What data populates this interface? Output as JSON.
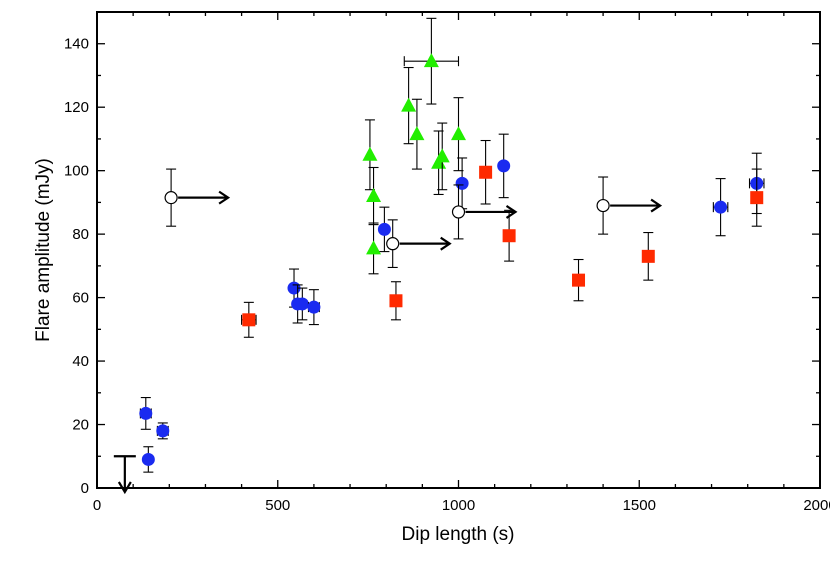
{
  "chart_data": {
    "type": "scatter",
    "title": "",
    "xlabel": "Dip length (s)",
    "ylabel": "Flare amplitude (mJy)",
    "xlim": [
      0,
      2000
    ],
    "ylim": [
      0,
      150
    ],
    "xticks": [
      0,
      500,
      1000,
      1500,
      2000
    ],
    "yticks": [
      0,
      20,
      40,
      60,
      80,
      100,
      120,
      140
    ],
    "xtick_labels": [
      "0",
      "500",
      "1000",
      "1500",
      "2000"
    ],
    "ytick_labels": [
      "0",
      "20",
      "40",
      "60",
      "80",
      "100",
      "120",
      "140"
    ],
    "grid": false,
    "legend": "none",
    "series": [
      {
        "marker": "circle",
        "color": "#1a2bf0",
        "points": [
          {
            "x": 135,
            "y": 23.5,
            "xerr": 15,
            "yerr": 5
          },
          {
            "x": 142,
            "y": 9,
            "yerr": 4
          },
          {
            "x": 182,
            "y": 18,
            "xerr": 15,
            "yerr": 2.5
          },
          {
            "x": 545,
            "y": 63,
            "yerr": 6
          },
          {
            "x": 555,
            "y": 58,
            "yerr": 6
          },
          {
            "x": 568,
            "y": 58,
            "yerr": 5
          },
          {
            "x": 600,
            "y": 57,
            "xerr": 15,
            "yerr": 5.5
          },
          {
            "x": 795,
            "y": 81.5,
            "yerr": 7
          },
          {
            "x": 1010,
            "y": 96,
            "yerr": 8
          },
          {
            "x": 1125,
            "y": 101.5,
            "yerr": 10
          },
          {
            "x": 1725,
            "y": 88.5,
            "xerr": 20,
            "yerr": 9
          },
          {
            "x": 1825,
            "y": 96,
            "xerr": 20,
            "yerr": 9.5
          }
        ]
      },
      {
        "marker": "square",
        "color": "#ff2a00",
        "points": [
          {
            "x": 420,
            "y": 53,
            "xerr": 20,
            "yerr": 5.5
          },
          {
            "x": 827,
            "y": 59,
            "yerr": 6
          },
          {
            "x": 1075,
            "y": 99.5,
            "yerr": 10
          },
          {
            "x": 1140,
            "y": 79.5,
            "yerr": 8
          },
          {
            "x": 1332,
            "y": 65.5,
            "yerr": 6.5
          },
          {
            "x": 1525,
            "y": 73,
            "yerr": 7.5
          },
          {
            "x": 1825,
            "y": 91.5,
            "yerr": 9
          }
        ]
      },
      {
        "marker": "triangle",
        "color": "#22ee00",
        "points": [
          {
            "x": 755,
            "y": 105,
            "yerr": 11
          },
          {
            "x": 765,
            "y": 92,
            "yerr": 9
          },
          {
            "x": 765,
            "y": 75.5,
            "yerr": 8
          },
          {
            "x": 862,
            "y": 120.5,
            "yerr": 12
          },
          {
            "x": 885,
            "y": 111.5,
            "yerr": 11
          },
          {
            "x": 925,
            "y": 134.5,
            "xerr": 75,
            "yerr": 13.5
          },
          {
            "x": 945,
            "y": 102.5,
            "yerr": 10
          },
          {
            "x": 955,
            "y": 104.5,
            "yerr": 10.5
          },
          {
            "x": 1000,
            "y": 111.5,
            "yerr": 11.5
          }
        ]
      },
      {
        "marker": "open-circle-lower-limit",
        "color": "#000000",
        "points": [
          {
            "x": 205,
            "y": 91.5,
            "yerr": 9,
            "x_lower_limit": true
          },
          {
            "x": 818,
            "y": 77,
            "yerr": 7.5,
            "x_lower_limit": true
          },
          {
            "x": 1000,
            "y": 87,
            "yerr": 8.5,
            "x_lower_limit": true
          },
          {
            "x": 1400,
            "y": 89,
            "yerr": 9,
            "x_lower_limit": true
          }
        ]
      },
      {
        "marker": "upper-limit-arrow",
        "color": "#000000",
        "points": [
          {
            "x": 77,
            "y": 10,
            "y_upper_limit": true
          }
        ]
      }
    ]
  }
}
